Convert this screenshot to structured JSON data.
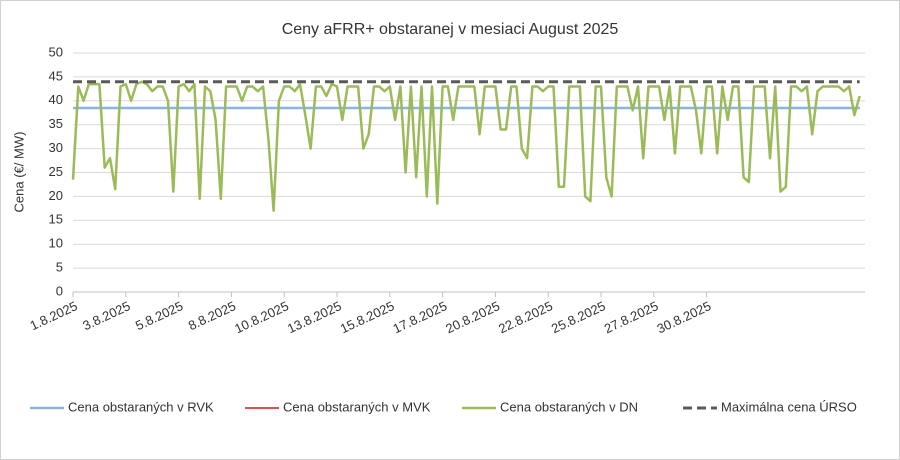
{
  "chart_data": {
    "type": "line",
    "title": "Ceny aFRR+ obstaranej v mesiaci August 2025",
    "y_label": "Cena (€/ MW)",
    "categories": [
      "1.8.2025",
      null,
      null,
      null,
      null,
      null,
      null,
      null,
      null,
      null,
      "3.8.2025",
      null,
      null,
      null,
      null,
      null,
      null,
      null,
      null,
      null,
      "5.8.2025",
      null,
      null,
      null,
      null,
      null,
      null,
      null,
      null,
      null,
      "8.8.2025",
      null,
      null,
      null,
      null,
      null,
      null,
      null,
      null,
      null,
      "10.8.2025",
      null,
      null,
      null,
      null,
      null,
      null,
      null,
      null,
      null,
      "13.8.2025",
      null,
      null,
      null,
      null,
      null,
      null,
      null,
      null,
      null,
      "15.8.2025",
      null,
      null,
      null,
      null,
      null,
      null,
      null,
      null,
      null,
      "17.8.2025",
      null,
      null,
      null,
      null,
      null,
      null,
      null,
      null,
      null,
      "20.8.2025",
      null,
      null,
      null,
      null,
      null,
      null,
      null,
      null,
      null,
      "22.8.2025",
      null,
      null,
      null,
      null,
      null,
      null,
      null,
      null,
      null,
      "25.8.2025",
      null,
      null,
      null,
      null,
      null,
      null,
      null,
      null,
      null,
      "27.8.2025",
      null,
      null,
      null,
      null,
      null,
      null,
      null,
      null,
      null,
      "30.8.2025",
      null,
      null,
      null,
      null,
      null,
      null,
      null,
      null,
      null,
      null,
      null,
      null,
      null,
      null,
      null,
      null,
      null,
      null,
      null,
      null,
      null,
      null,
      null,
      null,
      null,
      null,
      null,
      null,
      null
    ],
    "series": [
      {
        "name": "Cena obstaraných v MVK",
        "color": "#e05050",
        "width": 2,
        "dashed": false,
        "values": [
          38.5,
          38.5,
          38.5,
          38.5,
          38.5,
          38.5,
          38.5,
          38.5,
          38.5,
          38.5,
          38.5,
          38.5,
          38.5,
          38.5,
          38.5,
          38.5,
          38.5,
          38.5,
          38.5,
          38.5,
          38.5,
          38.5,
          38.5,
          38.5,
          38.5,
          38.5,
          38.5,
          38.5,
          38.5,
          38.5,
          38.5,
          38.5,
          38.5,
          38.5,
          38.5,
          38.5,
          38.5,
          38.5,
          38.5,
          38.5,
          38.5,
          38.5,
          38.5,
          38.5,
          38.5,
          38.5,
          38.5,
          38.5,
          38.5,
          38.5,
          38.5,
          38.5,
          38.5,
          38.5,
          38.5,
          38.5,
          38.5,
          38.5,
          38.5,
          38.5,
          38.5,
          38.5,
          38.5,
          38.5,
          38.5,
          38.5,
          38.5,
          38.5,
          38.5,
          38.5,
          38.5,
          38.5,
          38.5,
          38.5,
          38.5,
          38.5,
          38.5,
          38.5,
          38.5,
          38.5,
          38.5,
          38.5,
          38.5,
          38.5,
          38.5,
          38.5,
          38.5,
          38.5,
          38.5,
          38.5,
          38.5,
          38.5,
          38.5,
          38.5,
          38.5,
          38.5,
          38.5,
          38.5,
          38.5,
          38.5,
          38.5,
          38.5,
          38.5,
          38.5,
          38.5,
          38.5,
          38.5,
          38.5,
          38.5,
          38.5,
          38.5,
          38.5,
          38.5,
          38.5,
          38.5,
          38.5,
          38.5,
          38.5,
          38.5,
          38.5,
          38.5,
          38.5,
          38.5,
          38.5,
          38.5,
          38.5,
          38.5,
          38.5,
          38.5,
          38.5,
          38.5,
          38.5,
          38.5,
          38.5,
          38.5,
          38.5,
          38.5,
          38.5,
          38.5,
          38.5,
          38.5,
          38.5,
          38.5,
          38.5,
          38.5,
          38.5,
          38.5,
          38.5,
          38.5,
          38.5
        ]
      },
      {
        "name": "Cena obstaraných v RVK",
        "color": "#8db3e2",
        "width": 2.5,
        "dashed": false,
        "values": [
          38.5,
          38.5,
          38.5,
          38.5,
          38.5,
          38.5,
          38.5,
          38.5,
          38.5,
          38.5,
          38.5,
          38.5,
          38.5,
          38.5,
          38.5,
          38.5,
          38.5,
          38.5,
          38.5,
          38.5,
          38.5,
          38.5,
          38.5,
          38.5,
          38.5,
          38.5,
          38.5,
          38.5,
          38.5,
          38.5,
          38.5,
          38.5,
          38.5,
          38.5,
          38.5,
          38.5,
          38.5,
          38.5,
          38.5,
          38.5,
          38.5,
          38.5,
          38.5,
          38.5,
          38.5,
          38.5,
          38.5,
          38.5,
          38.5,
          38.5,
          38.5,
          38.5,
          38.5,
          38.5,
          38.5,
          38.5,
          38.5,
          38.5,
          38.5,
          38.5,
          38.5,
          38.5,
          38.5,
          38.5,
          38.5,
          38.5,
          38.5,
          38.5,
          38.5,
          38.5,
          38.5,
          38.5,
          38.5,
          38.5,
          38.5,
          38.5,
          38.5,
          38.5,
          38.5,
          38.5,
          38.5,
          38.5,
          38.5,
          38.5,
          38.5,
          38.5,
          38.5,
          38.5,
          38.5,
          38.5,
          38.5,
          38.5,
          38.5,
          38.5,
          38.5,
          38.5,
          38.5,
          38.5,
          38.5,
          38.5,
          38.5,
          38.5,
          38.5,
          38.5,
          38.5,
          38.5,
          38.5,
          38.5,
          38.5,
          38.5,
          38.5,
          38.5,
          38.5,
          38.5,
          38.5,
          38.5,
          38.5,
          38.5,
          38.5,
          38.5,
          38.5,
          38.5,
          38.5,
          38.5,
          38.5,
          38.5,
          38.5,
          38.5,
          38.5,
          38.5,
          38.5,
          38.5,
          38.5,
          38.5,
          38.5,
          38.5,
          38.5,
          38.5,
          38.5,
          38.5,
          38.5,
          38.5,
          38.5,
          38.5,
          38.5,
          38.5,
          38.5,
          38.5,
          38.5,
          38.5
        ]
      },
      {
        "name": "Cena obstaraných v DN",
        "color": "#9bbb59",
        "width": 2.5,
        "dashed": false,
        "values": [
          23.5,
          43,
          40,
          43.5,
          43.5,
          43.5,
          26,
          28,
          21.5,
          43,
          43.5,
          40,
          43.5,
          44,
          43.5,
          42,
          43,
          43,
          40,
          21,
          43,
          43.5,
          42,
          43.5,
          19.5,
          43,
          42,
          36,
          19.5,
          43,
          43,
          43,
          40,
          43,
          43,
          42,
          43,
          32,
          17,
          40,
          43,
          43,
          42,
          43.5,
          37,
          30,
          43,
          43,
          41,
          43.5,
          43,
          36,
          43,
          43,
          43,
          30,
          33,
          43,
          43,
          42,
          43,
          36,
          43,
          25,
          43,
          24,
          43,
          20,
          43,
          18.5,
          43,
          43,
          36,
          43,
          43,
          43,
          43,
          33,
          43,
          43,
          43,
          34,
          34,
          43,
          43,
          30,
          28,
          43,
          43,
          42,
          43,
          43,
          22,
          22,
          43,
          43,
          43,
          20,
          19,
          43,
          43,
          24,
          20,
          43,
          43,
          43,
          38,
          43,
          28,
          43,
          43,
          43,
          36,
          43,
          29,
          43,
          43,
          43,
          38,
          29,
          43,
          43,
          29,
          43,
          36,
          43,
          43,
          24,
          23,
          43,
          43,
          43,
          28,
          43,
          21,
          22,
          43,
          43,
          42,
          43,
          33,
          42,
          43,
          43,
          43,
          43,
          42,
          43,
          37,
          41
        ]
      },
      {
        "name": "Maximálna cena ÚRSO",
        "color": "#595959",
        "width": 3,
        "dashed": true,
        "values": [
          44,
          44,
          44,
          44,
          44,
          44,
          44,
          44,
          44,
          44,
          44,
          44,
          44,
          44,
          44,
          44,
          44,
          44,
          44,
          44,
          44,
          44,
          44,
          44,
          44,
          44,
          44,
          44,
          44,
          44,
          44,
          44,
          44,
          44,
          44,
          44,
          44,
          44,
          44,
          44,
          44,
          44,
          44,
          44,
          44,
          44,
          44,
          44,
          44,
          44,
          44,
          44,
          44,
          44,
          44,
          44,
          44,
          44,
          44,
          44,
          44,
          44,
          44,
          44,
          44,
          44,
          44,
          44,
          44,
          44,
          44,
          44,
          44,
          44,
          44,
          44,
          44,
          44,
          44,
          44,
          44,
          44,
          44,
          44,
          44,
          44,
          44,
          44,
          44,
          44,
          44,
          44,
          44,
          44,
          44,
          44,
          44,
          44,
          44,
          44,
          44,
          44,
          44,
          44,
          44,
          44,
          44,
          44,
          44,
          44,
          44,
          44,
          44,
          44,
          44,
          44,
          44,
          44,
          44,
          44,
          44,
          44,
          44,
          44,
          44,
          44,
          44,
          44,
          44,
          44,
          44,
          44,
          44,
          44,
          44,
          44,
          44,
          44,
          44,
          44,
          44,
          44,
          44,
          44,
          44,
          44,
          44,
          44,
          44,
          44
        ]
      }
    ],
    "legend_order": [
      1,
      0,
      2,
      3
    ],
    "ylim": [
      0,
      50
    ],
    "yticks": [
      0,
      5,
      10,
      15,
      20,
      25,
      30,
      35,
      40,
      45,
      50
    ],
    "grid": true,
    "legend": "bottom"
  }
}
